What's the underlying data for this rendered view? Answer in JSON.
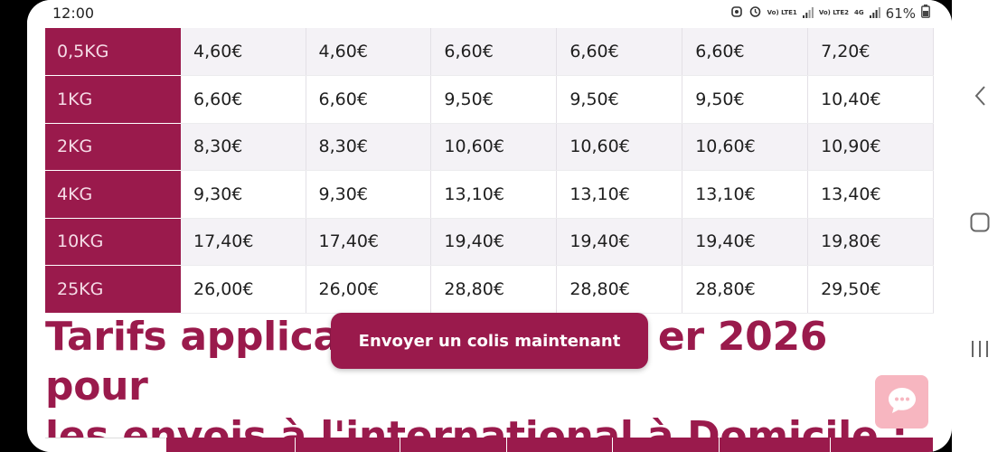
{
  "status_bar": {
    "time": "12:00",
    "sim1": "Vo) LTE1",
    "sim2": "Vo) LTE2",
    "network": "4G",
    "battery": "61%"
  },
  "rates": [
    {
      "weight": "0,5KG",
      "prices": [
        "4,60€",
        "4,60€",
        "6,60€",
        "6,60€",
        "6,60€",
        "7,20€"
      ]
    },
    {
      "weight": "1KG",
      "prices": [
        "6,60€",
        "6,60€",
        "9,50€",
        "9,50€",
        "9,50€",
        "10,40€"
      ]
    },
    {
      "weight": "2KG",
      "prices": [
        "8,30€",
        "8,30€",
        "10,60€",
        "10,60€",
        "10,60€",
        "10,90€"
      ]
    },
    {
      "weight": "4KG",
      "prices": [
        "9,30€",
        "9,30€",
        "13,10€",
        "13,10€",
        "13,10€",
        "13,40€"
      ]
    },
    {
      "weight": "10KG",
      "prices": [
        "17,40€",
        "17,40€",
        "19,40€",
        "19,40€",
        "19,40€",
        "19,80€"
      ]
    },
    {
      "weight": "25KG",
      "prices": [
        "26,00€",
        "26,00€",
        "28,80€",
        "28,80€",
        "28,80€",
        "29,50€"
      ]
    }
  ],
  "heading": {
    "line1_start": "Tarifs applica",
    "line1_end": "er 2026 pour",
    "line2": "les envois à l'international à Domicile :"
  },
  "cta_label": "Envoyer un colis maintenant",
  "colors": {
    "brand": "#9a1a4c",
    "chat_button": "#f7b6c0"
  }
}
